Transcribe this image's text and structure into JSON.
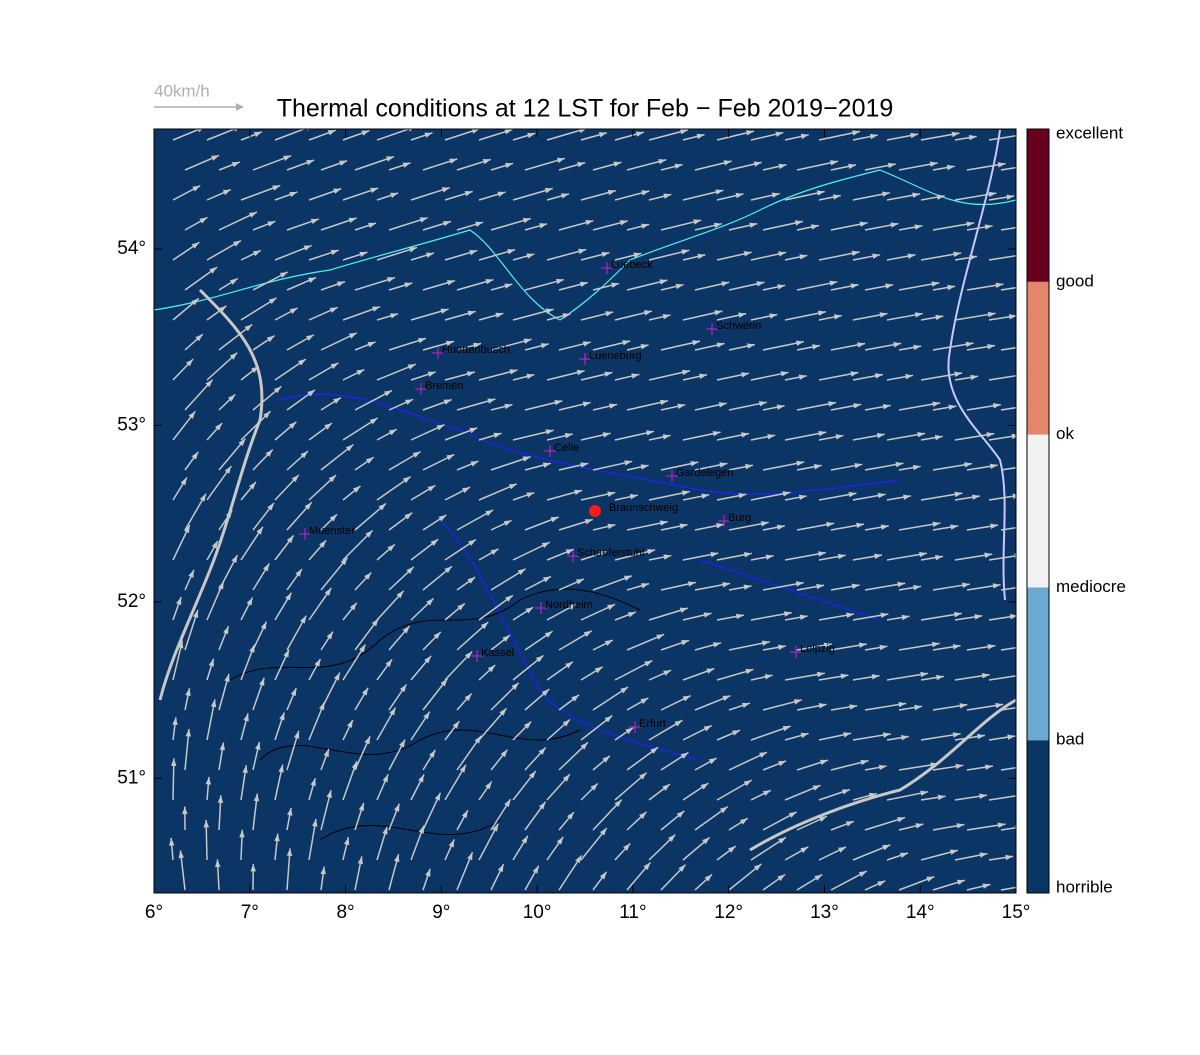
{
  "map": {
    "title": "Thermal conditions at 12 LST for Feb − Feb  2019−2019",
    "wind_legend": "40km/h",
    "xlim": [
      6,
      15
    ],
    "ylim": [
      50.35,
      54.68
    ],
    "xticks": [
      {
        "value": 6,
        "label": "6°"
      },
      {
        "value": 7,
        "label": "7°"
      },
      {
        "value": 8,
        "label": "8°"
      },
      {
        "value": 9,
        "label": "9°"
      },
      {
        "value": 10,
        "label": "10°"
      },
      {
        "value": 11,
        "label": "11°"
      },
      {
        "value": 12,
        "label": "12°"
      },
      {
        "value": 13,
        "label": "13°"
      },
      {
        "value": 14,
        "label": "14°"
      },
      {
        "value": 15,
        "label": "15°"
      }
    ],
    "yticks": [
      {
        "value": 51,
        "label": "51°"
      },
      {
        "value": 52,
        "label": "52°"
      },
      {
        "value": 53,
        "label": "53°"
      },
      {
        "value": 54,
        "label": "54°"
      }
    ],
    "colorbar": {
      "labels": [
        "horrible",
        "bad",
        "mediocre",
        "ok",
        "good",
        "excellent"
      ],
      "colors": [
        "#0b3565",
        "#6aa9d1",
        "#f2f2f2",
        "#e3866b",
        "#67001f"
      ]
    },
    "cities": [
      "Luebeck",
      "Schwerin",
      "Huettenbusch",
      "Lueneburg",
      "Bremen",
      "Celle",
      "Gardelegen",
      "Braunschweig",
      "Burg",
      "Muenster",
      "Schaeferstuhl",
      "Nordheim",
      "Kassel",
      "Leipzig",
      "Erfurt"
    ]
  }
}
